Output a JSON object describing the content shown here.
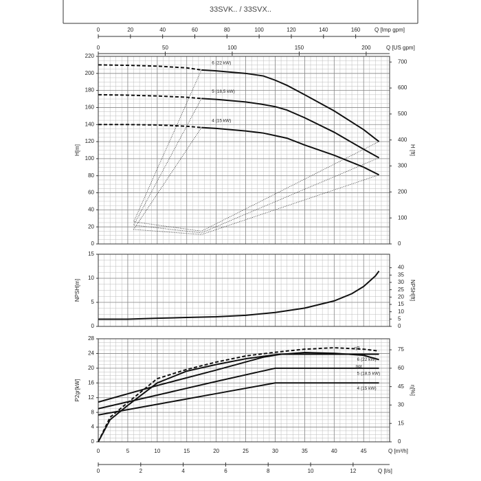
{
  "title": "33SVK.. / 33SVX..",
  "chart_data": [
    {
      "type": "line",
      "ylabel": "H[m]",
      "y2label": "H [ft]",
      "xlim": [
        0,
        49.4
      ],
      "xticks": [
        0,
        5,
        10,
        15,
        20,
        25,
        30,
        35,
        40,
        45
      ],
      "ylim": [
        0,
        220
      ],
      "yticks": [
        0,
        20,
        40,
        60,
        80,
        100,
        120,
        140,
        160,
        180,
        200,
        220
      ],
      "y2lim": [
        0,
        721.8
      ],
      "y2ticks": [
        0,
        100,
        200,
        300,
        400,
        500,
        600,
        700
      ],
      "grid": true,
      "dashed_to_x": 17.5,
      "x2axes": [
        {
          "label": "Q [Imp gpm]",
          "xlim": [
            0,
            181.1
          ],
          "xticks": [
            0,
            20,
            40,
            60,
            80,
            100,
            120,
            140,
            160
          ]
        },
        {
          "label": "Q [US gpm]",
          "xlim": [
            0,
            217.5
          ],
          "xticks": [
            0,
            50,
            100,
            150,
            200
          ]
        }
      ],
      "series": [
        {
          "name": "6 (22 kW)",
          "color": "#111",
          "x": [
            0,
            5,
            10,
            15,
            17.5,
            20,
            25,
            28,
            30,
            32,
            35,
            40,
            45,
            47.6
          ],
          "values": [
            210,
            209.5,
            208.5,
            206.5,
            204,
            203,
            200,
            197,
            192,
            186,
            175,
            156,
            134,
            120
          ]
        },
        {
          "name": "5 (18,5 kW)",
          "color": "#111",
          "x": [
            0,
            5,
            10,
            15,
            17.5,
            20,
            25,
            28,
            30,
            32,
            35,
            40,
            45,
            47.6
          ],
          "values": [
            175,
            174.5,
            173.5,
            172,
            170.5,
            169.5,
            166.5,
            163.5,
            161,
            157,
            148,
            131,
            111,
            101
          ]
        },
        {
          "name": "4 (15 kW)",
          "color": "#111",
          "x": [
            0,
            5,
            10,
            15,
            17.5,
            20,
            25,
            28,
            30,
            32,
            35,
            40,
            45,
            47.6
          ],
          "values": [
            140,
            140,
            139.5,
            138,
            136.5,
            135.5,
            132.5,
            130,
            127,
            124,
            116,
            104,
            90,
            81
          ]
        }
      ],
      "guides": [
        {
          "x": [
            17.5,
            6,
            17.5,
            47.6
          ],
          "values": [
            204,
            26,
            15,
            120
          ]
        },
        {
          "x": [
            17.5,
            6,
            17.5,
            47.6
          ],
          "values": [
            170.5,
            22,
            13,
            101
          ]
        },
        {
          "x": [
            17.5,
            6,
            17.5,
            47.6
          ],
          "values": [
            136.5,
            17,
            11,
            81
          ]
        }
      ]
    },
    {
      "type": "line",
      "ylabel": "NPSH[m]",
      "y2label": "NPSH[ft]",
      "xlim": [
        0,
        49.4
      ],
      "xticks": [
        0,
        5,
        10,
        15,
        20,
        25,
        30,
        35,
        40,
        45
      ],
      "ylim": [
        0,
        15
      ],
      "yticks": [
        0,
        5,
        10,
        15
      ],
      "y2lim": [
        0,
        49.2
      ],
      "y2ticks": [
        0,
        5,
        10,
        15,
        20,
        25,
        30,
        35,
        40
      ],
      "grid": true,
      "series": [
        {
          "color": "#111",
          "x": [
            0,
            5,
            10,
            15,
            20,
            25,
            30,
            35,
            40,
            43,
            45,
            47,
            47.6
          ],
          "values": [
            1.5,
            1.5,
            1.7,
            1.85,
            2.0,
            2.3,
            2.9,
            3.8,
            5.3,
            6.8,
            8.3,
            10.5,
            11.5
          ]
        }
      ]
    },
    {
      "type": "line",
      "ylabel": "P2gr[kW]",
      "y2label": "η[%]",
      "xlabel": "Q [m³/h]",
      "xlim": [
        0,
        49.4
      ],
      "xticks": [
        0,
        5,
        10,
        15,
        20,
        25,
        30,
        35,
        40,
        45
      ],
      "ylim": [
        0,
        28
      ],
      "yticks": [
        0,
        4,
        8,
        12,
        16,
        20,
        24,
        28
      ],
      "y2lim": [
        0,
        84
      ],
      "y2ticks": [
        0,
        15,
        30,
        45,
        60,
        75
      ],
      "grid": true,
      "x2axes": [
        {
          "label": "Q [l/s]",
          "xlim": [
            0,
            13.72
          ],
          "xticks": [
            0,
            2,
            4,
            6,
            8,
            10,
            12
          ]
        }
      ],
      "series": [
        {
          "name": "6 (22 kW)",
          "color": "#111",
          "x": [
            0,
            10,
            20,
            28,
            31,
            35,
            40,
            45,
            47.6
          ],
          "values": [
            10.8,
            15.3,
            19.5,
            23,
            23.8,
            23.8,
            23.8,
            23.8,
            23.8
          ]
        },
        {
          "name": "5 (18,5 kW)",
          "color": "#111",
          "x": [
            0,
            10,
            20,
            30,
            35,
            40,
            47.6
          ],
          "values": [
            9,
            12.7,
            16.4,
            20,
            20,
            20,
            20
          ]
        },
        {
          "name": "4 (15 kW)",
          "color": "#111",
          "x": [
            0,
            10,
            20,
            30,
            35,
            40,
            47.6
          ],
          "values": [
            7.3,
            10.2,
            13.1,
            16,
            16,
            16,
            16
          ]
        },
        {
          "name": "ηP",
          "color": "#111",
          "axis": "y2",
          "dashed": true,
          "x": [
            0,
            2,
            5,
            10,
            15,
            20,
            25,
            30,
            35,
            40,
            45,
            47.6
          ],
          "values": [
            0,
            20,
            32,
            51.5,
            59,
            65,
            70,
            73,
            75.5,
            76.7,
            75.5,
            74
          ]
        },
        {
          "name": "ηgr",
          "color": "#111",
          "axis": "y2",
          "x": [
            0,
            2,
            5,
            10,
            15,
            20,
            25,
            30,
            35,
            40,
            45,
            47.6
          ],
          "values": [
            0,
            18,
            29.7,
            48,
            57.6,
            63,
            67.7,
            71,
            72.8,
            72.2,
            70.5,
            67
          ]
        }
      ]
    }
  ]
}
